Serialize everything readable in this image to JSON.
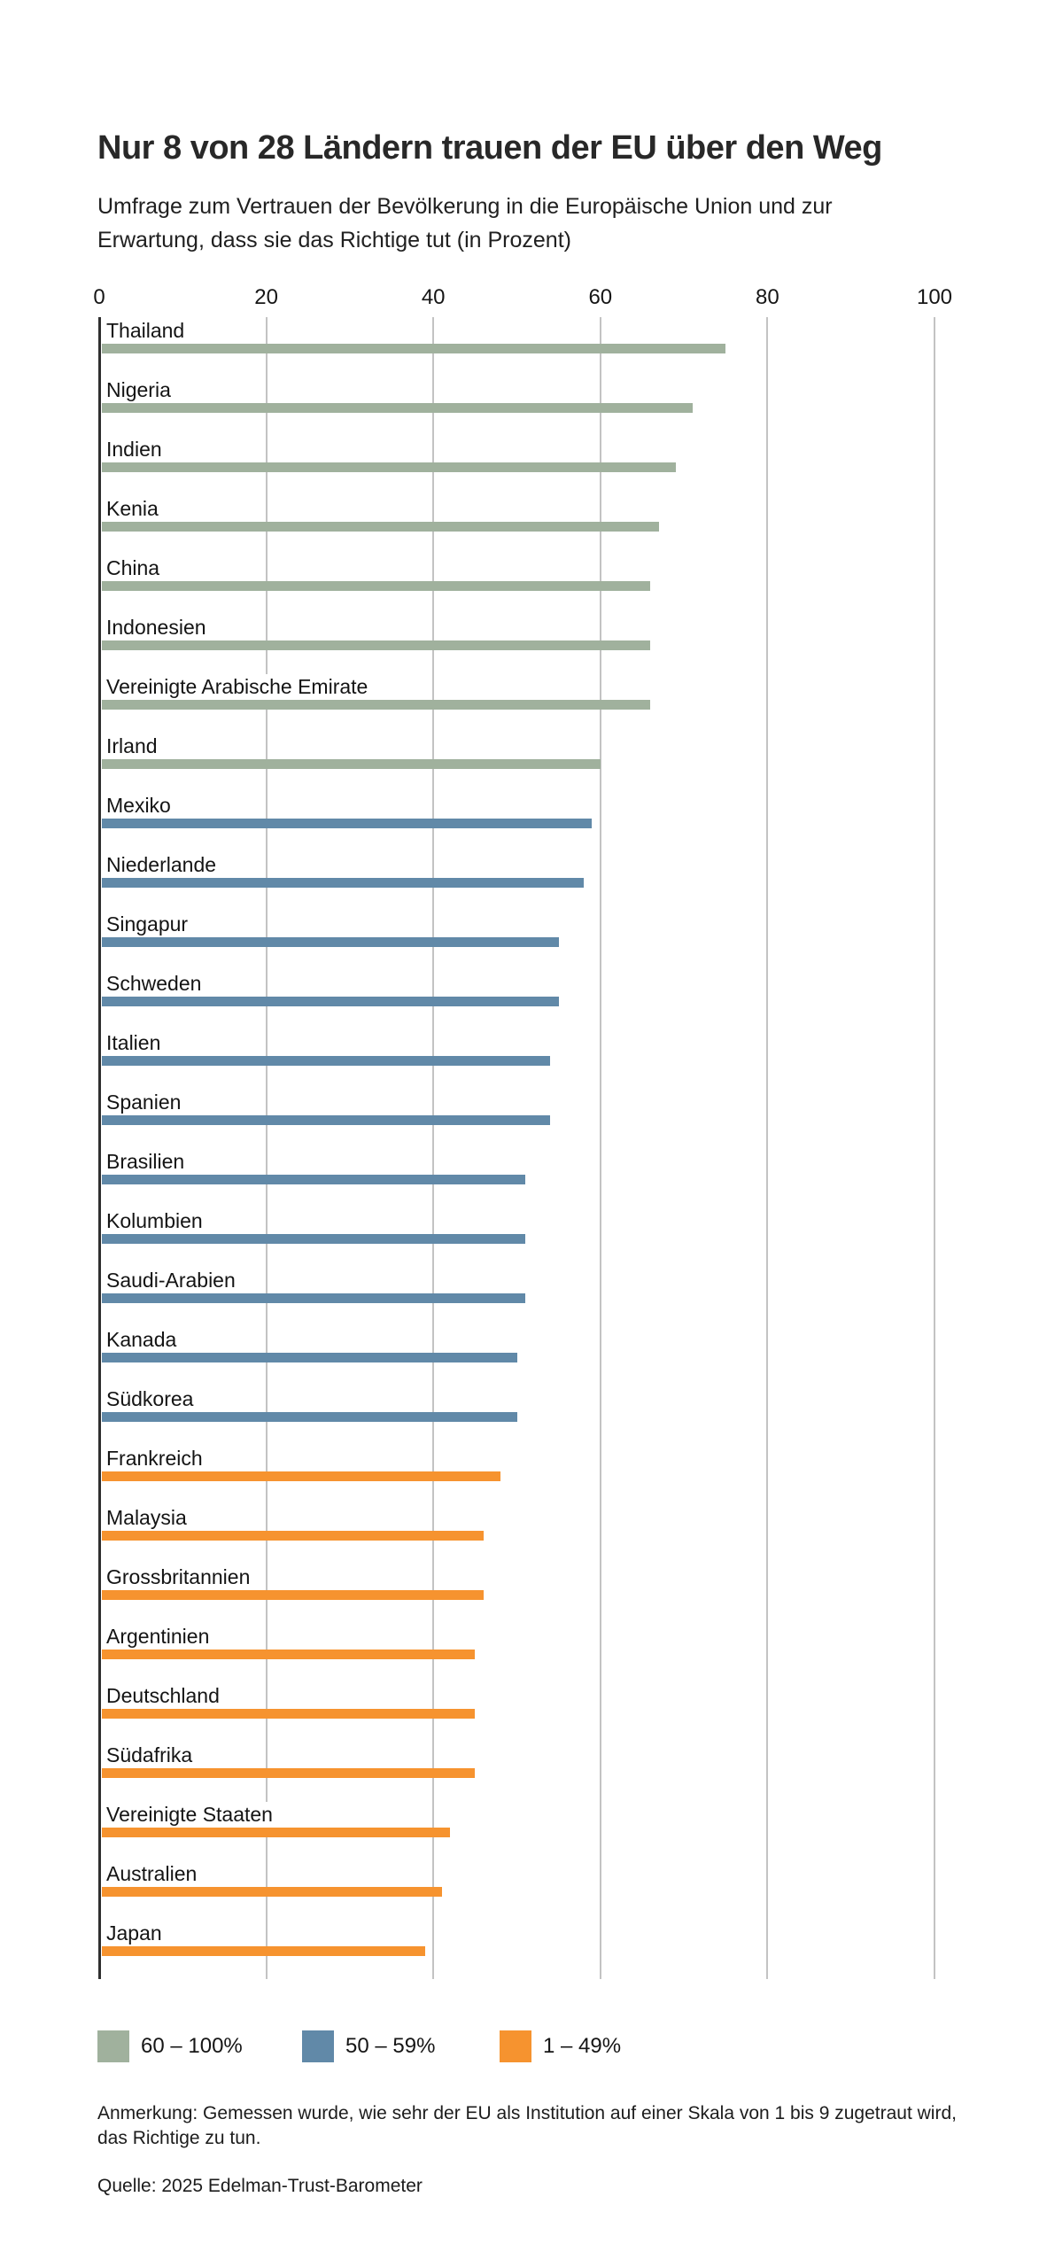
{
  "header": {
    "title": "Nur 8 von 28 Ländern trauen der EU über den Weg",
    "subtitle": "Umfrage zum Vertrauen der Bevölkerung in die Europäische Union und zur Erwartung, dass sie das Richtige tut (in Prozent)"
  },
  "chart_data": {
    "type": "bar",
    "orientation": "horizontal",
    "title": "Nur 8 von 28 Ländern trauen der EU über den Weg",
    "subtitle": "Umfrage zum Vertrauen der Bevölkerung in die Europäische Union und zur Erwartung, dass sie das Richtige tut (in Prozent)",
    "xlabel": "",
    "ylabel": "",
    "xlim": [
      0,
      100
    ],
    "x_ticks": [
      0,
      20,
      40,
      60,
      80,
      100
    ],
    "grid": true,
    "legend_position": "bottom",
    "categories": [
      "Thailand",
      "Nigeria",
      "Indien",
      "Kenia",
      "China",
      "Indonesien",
      "Vereinigte Arabische Emirate",
      "Irland",
      "Mexiko",
      "Niederlande",
      "Singapur",
      "Schweden",
      "Italien",
      "Spanien",
      "Brasilien",
      "Kolumbien",
      "Saudi-Arabien",
      "Kanada",
      "Südkorea",
      "Frankreich",
      "Malaysia",
      "Grossbritannien",
      "Argentinien",
      "Deutschland",
      "Südafrika",
      "Vereinigte Staaten",
      "Australien",
      "Japan"
    ],
    "values": [
      75,
      71,
      69,
      67,
      66,
      66,
      66,
      60,
      59,
      58,
      55,
      55,
      54,
      54,
      51,
      51,
      51,
      50,
      50,
      48,
      46,
      46,
      45,
      45,
      45,
      42,
      41,
      39
    ],
    "groups": [
      "high",
      "high",
      "high",
      "high",
      "high",
      "high",
      "high",
      "high",
      "mid",
      "mid",
      "mid",
      "mid",
      "mid",
      "mid",
      "mid",
      "mid",
      "mid",
      "mid",
      "mid",
      "low",
      "low",
      "low",
      "low",
      "low",
      "low",
      "low",
      "low",
      "low"
    ],
    "colors": {
      "high": "#A0B19D",
      "mid": "#6189A8",
      "low": "#F6932F"
    }
  },
  "legend": {
    "items": [
      {
        "label": "60 – 100%",
        "color_key": "high"
      },
      {
        "label": "50 – 59%",
        "color_key": "mid"
      },
      {
        "label": "1 – 49%",
        "color_key": "low"
      }
    ]
  },
  "footer": {
    "note": "Anmerkung: Gemessen wurde, wie sehr der EU als Institution auf einer Skala von 1 bis 9 zugetraut wird, das Richtige zu tun.",
    "source": "Quelle: 2025 Edelman-Trust-Barometer"
  }
}
